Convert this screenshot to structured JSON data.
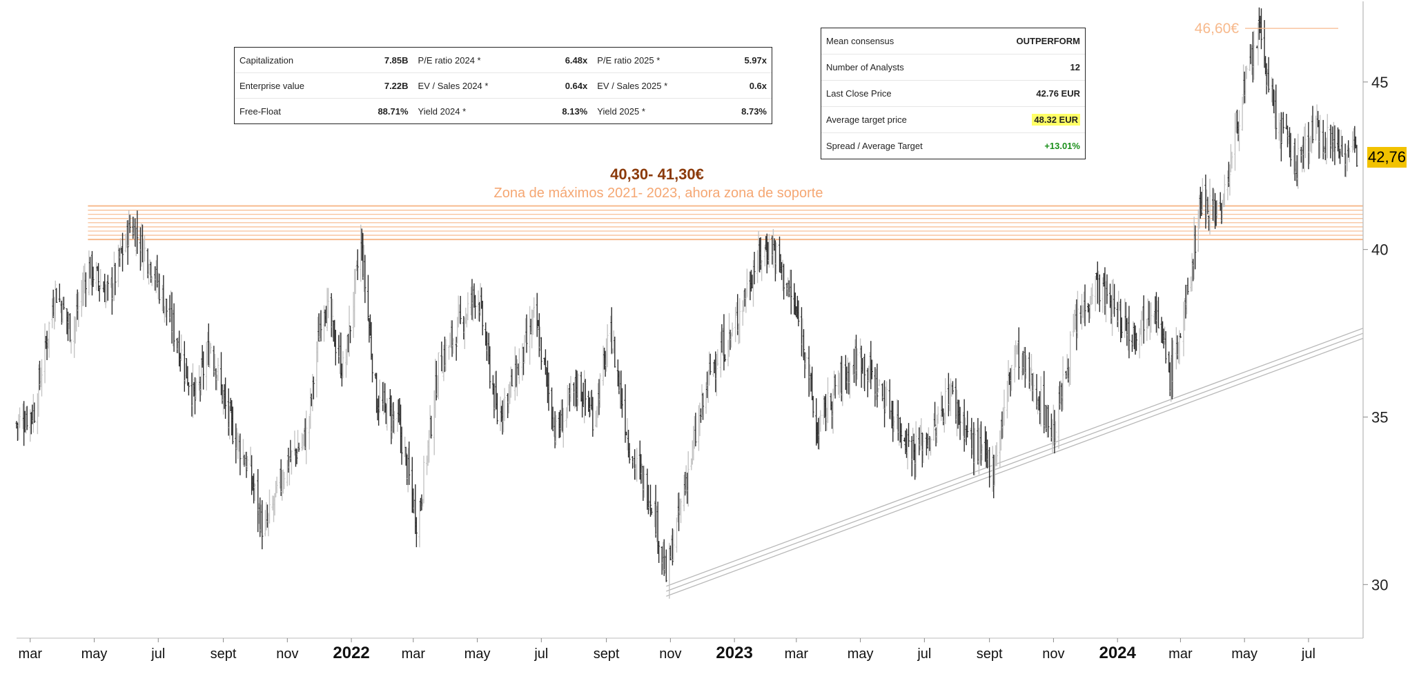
{
  "stats_table": {
    "rows": [
      [
        {
          "label": "Capitalization",
          "value": "7.85B"
        },
        {
          "label": "P/E ratio 2024 *",
          "value": "6.48x"
        },
        {
          "label": "P/E ratio 2025 *",
          "value": "5.97x"
        }
      ],
      [
        {
          "label": "Enterprise value",
          "value": "7.22B"
        },
        {
          "label": "EV / Sales 2024 *",
          "value": "0.64x"
        },
        {
          "label": "EV / Sales 2025 *",
          "value": "0.6x"
        }
      ],
      [
        {
          "label": "Free-Float",
          "value": "88.71%"
        },
        {
          "label": "Yield 2024 *",
          "value": "8.13%"
        },
        {
          "label": "Yield 2025 *",
          "value": "8.73%"
        }
      ]
    ]
  },
  "consensus_table": {
    "rows": [
      {
        "label": "Mean consensus",
        "value": "OUTPERFORM",
        "style": "plain"
      },
      {
        "label": "Number of Analysts",
        "value": "12",
        "style": "plain"
      },
      {
        "label": "Last Close Price",
        "value": "42.76 EUR",
        "style": "plain"
      },
      {
        "label": "Average target price",
        "value": "48.32 EUR",
        "style": "yellow"
      },
      {
        "label": "Spread / Average Target",
        "value": "+13.01%",
        "style": "green"
      }
    ]
  },
  "annotations": {
    "zone_price": "40,30- 41,30€",
    "zone_label": "Zona de máximos 2021- 2023, ahora zona de soporte",
    "peak_label": "46,60€",
    "last_price_tag": "42,76"
  },
  "colors": {
    "zone_lines": "#f7b98c",
    "zone_price_text": "#8b3a0a",
    "zone_label_text": "#f5a773",
    "peak_text": "#f7b98c",
    "trendline": "#b8b8b8",
    "candle_dark": "#2b2b2b",
    "candle_light": "#c4c4c4",
    "price_tag_bg": "#f2c200"
  },
  "chart_data": {
    "type": "ohlc",
    "ylim": [
      28.4,
      47.2
    ],
    "y_ticks": [
      "30",
      "35",
      "40",
      "45"
    ],
    "x_range": [
      "2021-02-16",
      "2024-08-22"
    ],
    "x_ticks": [
      {
        "label": "mar",
        "date": "2021-03-01",
        "bold": false
      },
      {
        "label": "may",
        "date": "2021-05-01",
        "bold": false
      },
      {
        "label": "jul",
        "date": "2021-07-01",
        "bold": false
      },
      {
        "label": "sept",
        "date": "2021-09-01",
        "bold": false
      },
      {
        "label": "nov",
        "date": "2021-11-01",
        "bold": false
      },
      {
        "label": "2022",
        "date": "2022-01-01",
        "bold": true
      },
      {
        "label": "mar",
        "date": "2022-03-01",
        "bold": false
      },
      {
        "label": "may",
        "date": "2022-05-01",
        "bold": false
      },
      {
        "label": "jul",
        "date": "2022-07-01",
        "bold": false
      },
      {
        "label": "sept",
        "date": "2022-09-01",
        "bold": false
      },
      {
        "label": "nov",
        "date": "2022-11-01",
        "bold": false
      },
      {
        "label": "2023",
        "date": "2023-01-01",
        "bold": true
      },
      {
        "label": "mar",
        "date": "2023-03-01",
        "bold": false
      },
      {
        "label": "may",
        "date": "2023-05-01",
        "bold": false
      },
      {
        "label": "jul",
        "date": "2023-07-01",
        "bold": false
      },
      {
        "label": "sept",
        "date": "2023-09-01",
        "bold": false
      },
      {
        "label": "nov",
        "date": "2023-11-01",
        "bold": false
      },
      {
        "label": "2024",
        "date": "2024-01-01",
        "bold": true
      },
      {
        "label": "mar",
        "date": "2024-03-01",
        "bold": false
      },
      {
        "label": "may",
        "date": "2024-05-01",
        "bold": false
      },
      {
        "label": "jul",
        "date": "2024-07-01",
        "bold": false
      }
    ],
    "price_path": [
      {
        "date": "2021-02-16",
        "price": 34.8
      },
      {
        "date": "2021-03-05",
        "price": 35.2
      },
      {
        "date": "2021-03-25",
        "price": 38.8
      },
      {
        "date": "2021-04-10",
        "price": 37.5
      },
      {
        "date": "2021-04-25",
        "price": 39.5
      },
      {
        "date": "2021-05-15",
        "price": 38.6
      },
      {
        "date": "2021-06-05",
        "price": 40.8
      },
      {
        "date": "2021-06-25",
        "price": 39.5
      },
      {
        "date": "2021-07-20",
        "price": 37.2
      },
      {
        "date": "2021-08-05",
        "price": 35.5
      },
      {
        "date": "2021-08-20",
        "price": 37.2
      },
      {
        "date": "2021-09-05",
        "price": 35.0
      },
      {
        "date": "2021-09-25",
        "price": 33.5
      },
      {
        "date": "2021-10-10",
        "price": 31.5
      },
      {
        "date": "2021-10-30",
        "price": 33.5
      },
      {
        "date": "2021-11-20",
        "price": 34.5
      },
      {
        "date": "2021-12-05",
        "price": 38.6
      },
      {
        "date": "2021-12-25",
        "price": 36.3
      },
      {
        "date": "2022-01-10",
        "price": 40.2
      },
      {
        "date": "2022-01-25",
        "price": 35.5
      },
      {
        "date": "2022-02-15",
        "price": 34.8
      },
      {
        "date": "2022-03-05",
        "price": 31.8
      },
      {
        "date": "2022-03-25",
        "price": 36.5
      },
      {
        "date": "2022-04-15",
        "price": 37.8
      },
      {
        "date": "2022-05-01",
        "price": 38.8
      },
      {
        "date": "2022-05-20",
        "price": 35.0
      },
      {
        "date": "2022-06-10",
        "price": 36.5
      },
      {
        "date": "2022-06-25",
        "price": 38.0
      },
      {
        "date": "2022-07-15",
        "price": 34.5
      },
      {
        "date": "2022-08-05",
        "price": 36.0
      },
      {
        "date": "2022-08-20",
        "price": 35.0
      },
      {
        "date": "2022-09-05",
        "price": 37.5
      },
      {
        "date": "2022-09-25",
        "price": 33.8
      },
      {
        "date": "2022-10-15",
        "price": 32.5
      },
      {
        "date": "2022-10-28",
        "price": 30.2
      },
      {
        "date": "2022-11-15",
        "price": 33.0
      },
      {
        "date": "2022-12-10",
        "price": 36.5
      },
      {
        "date": "2022-12-30",
        "price": 37.5
      },
      {
        "date": "2023-01-20",
        "price": 39.5
      },
      {
        "date": "2023-02-05",
        "price": 40.2
      },
      {
        "date": "2023-02-25",
        "price": 38.5
      },
      {
        "date": "2023-03-10",
        "price": 37.0
      },
      {
        "date": "2023-03-20",
        "price": 34.5
      },
      {
        "date": "2023-04-10",
        "price": 36.0
      },
      {
        "date": "2023-05-01",
        "price": 36.8
      },
      {
        "date": "2023-05-25",
        "price": 35.5
      },
      {
        "date": "2023-06-20",
        "price": 34.0
      },
      {
        "date": "2023-07-10",
        "price": 34.5
      },
      {
        "date": "2023-07-25",
        "price": 35.8
      },
      {
        "date": "2023-08-15",
        "price": 34.2
      },
      {
        "date": "2023-09-05",
        "price": 33.5
      },
      {
        "date": "2023-09-25",
        "price": 37.0
      },
      {
        "date": "2023-10-15",
        "price": 35.8
      },
      {
        "date": "2023-11-01",
        "price": 34.5
      },
      {
        "date": "2023-11-20",
        "price": 37.5
      },
      {
        "date": "2023-12-10",
        "price": 39.0
      },
      {
        "date": "2023-12-30",
        "price": 38.2
      },
      {
        "date": "2024-01-15",
        "price": 37.5
      },
      {
        "date": "2024-02-05",
        "price": 38.5
      },
      {
        "date": "2024-02-20",
        "price": 36.2
      },
      {
        "date": "2024-03-05",
        "price": 38.0
      },
      {
        "date": "2024-03-20",
        "price": 41.5
      },
      {
        "date": "2024-04-10",
        "price": 41.2
      },
      {
        "date": "2024-04-25",
        "price": 44.0
      },
      {
        "date": "2024-05-15",
        "price": 46.5
      },
      {
        "date": "2024-05-30",
        "price": 44.0
      },
      {
        "date": "2024-06-20",
        "price": 42.5
      },
      {
        "date": "2024-07-05",
        "price": 43.6
      },
      {
        "date": "2024-07-25",
        "price": 43.2
      },
      {
        "date": "2024-08-16",
        "price": 42.76
      }
    ],
    "support_zone": {
      "low": 40.3,
      "high": 41.3,
      "start": "2021-04-25",
      "end": "2024-08-22"
    },
    "peak": {
      "price": 46.6,
      "date": "2024-05-18"
    },
    "trendline": {
      "start": {
        "date": "2022-10-28",
        "price": 29.8
      },
      "end": {
        "date": "2024-08-22",
        "price": 37.5
      }
    },
    "last_price": 42.76
  }
}
